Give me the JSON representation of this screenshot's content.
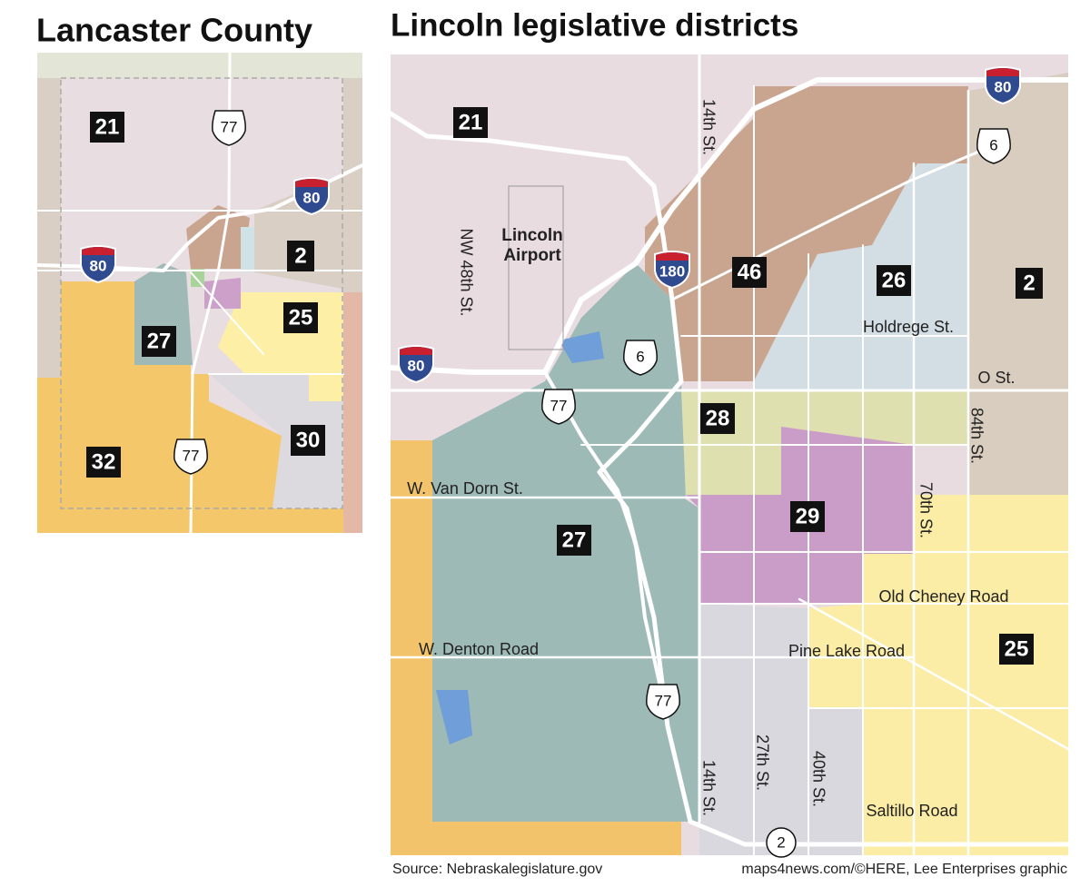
{
  "left_map": {
    "title": "Lancaster County",
    "districts": [
      "21",
      "2",
      "25",
      "27",
      "30",
      "32"
    ],
    "highways": [
      "77",
      "80",
      "80",
      "77"
    ]
  },
  "right_map": {
    "title": "Lincoln legislative districts",
    "districts": [
      "21",
      "46",
      "26",
      "2",
      "28",
      "29",
      "27",
      "25"
    ],
    "highways": [
      "80",
      "6",
      "180",
      "6",
      "80",
      "77",
      "77",
      "2"
    ],
    "place": [
      "Lincoln",
      "Airport"
    ],
    "streets": [
      "14th St.",
      "NW 48th St.",
      "Holdrege St.",
      "O St.",
      "84th St.",
      "W. Van Dorn St.",
      "70th St.",
      "Old Cheney Road",
      "Pine Lake Road",
      "W. Denton Road",
      "14th St.",
      "27th St.",
      "40th St.",
      "Saltillo Road"
    ]
  },
  "footer": {
    "source": "Source: Nebraskalegislature.gov",
    "credit": "maps4news.com/©HERE, Lee Enterprises graphic"
  }
}
